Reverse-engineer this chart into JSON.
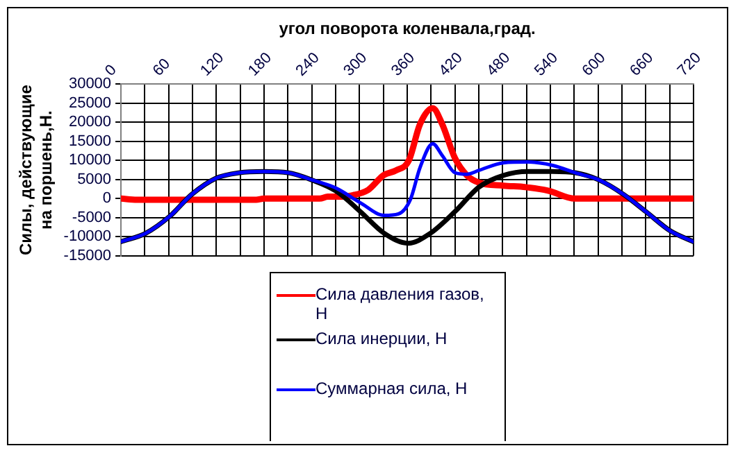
{
  "chart_data": {
    "type": "line",
    "xlabel": "угол поворота коленвала,град.",
    "ylabel": "Силы, действующие на поршень,Н.",
    "xlim": [
      0,
      720
    ],
    "xticks": [
      0,
      {
        "value": 30,
        "label": null
      },
      60,
      {
        "value": 90,
        "label": null
      },
      120,
      {
        "value": 150,
        "label": null
      },
      180,
      {
        "value": 210,
        "label": null
      },
      240,
      {
        "value": 270,
        "label": null
      },
      300,
      {
        "value": 330,
        "label": null
      },
      360,
      {
        "value": 390,
        "label": null
      },
      420,
      {
        "value": 450,
        "label": null
      },
      480,
      {
        "value": 510,
        "label": null
      },
      540,
      {
        "value": 570,
        "label": null
      },
      600,
      {
        "value": 630,
        "label": null
      },
      660,
      {
        "value": 690,
        "label": null
      },
      720
    ],
    "ylim": [
      -15000,
      30000
    ],
    "yticks": [
      -15000,
      -10000,
      -5000,
      0,
      5000,
      10000,
      15000,
      20000,
      25000,
      30000
    ],
    "grid": true,
    "legend": "bottom",
    "marker": "none",
    "line_style": "solid",
    "series": [
      {
        "name": "Сила давления газов, Н",
        "color": "#ff0000",
        "x": [
          0,
          20,
          170,
          180,
          250,
          260,
          280,
          287,
          311,
          330,
          346,
          362,
          376,
          392,
          404,
          420,
          435,
          450,
          481,
          509,
          537,
          571,
          720
        ],
        "values": [
          0,
          -300,
          -300,
          0,
          0,
          500,
          500,
          700,
          2300,
          6100,
          7400,
          10000,
          19500,
          23700,
          19500,
          10600,
          6100,
          4200,
          3400,
          3000,
          2100,
          0,
          0
        ]
      },
      {
        "name": "Сила инерции, Н",
        "color": "#000000",
        "x": [
          0,
          31,
          61,
          89,
          119,
          149,
          180,
          210,
          240,
          271,
          301,
          331,
          361,
          389,
          420,
          450,
          481,
          512,
          543,
          571,
          601,
          632,
          660,
          691,
          720
        ],
        "values": [
          -11300,
          -9100,
          -4700,
          1100,
          5300,
          6800,
          7100,
          6800,
          4900,
          1900,
          -3400,
          -9100,
          -11700,
          -9100,
          -3400,
          3000,
          6100,
          7100,
          7100,
          6800,
          4900,
          1100,
          -3400,
          -8500,
          -11300
        ]
      },
      {
        "name": "Суммарная сила, Н",
        "color": "#0000ff",
        "x": [
          0,
          31,
          61,
          89,
          119,
          149,
          180,
          210,
          240,
          271,
          301,
          331,
          349,
          364,
          376,
          392,
          404,
          420,
          435,
          450,
          481,
          512,
          543,
          571,
          601,
          632,
          660,
          691,
          720
        ],
        "values": [
          -11300,
          -9100,
          -4700,
          1100,
          5300,
          6800,
          7100,
          6800,
          4900,
          2700,
          -1100,
          -4400,
          -4000,
          -200,
          8100,
          14400,
          11300,
          6800,
          6400,
          7400,
          9400,
          9600,
          8700,
          6800,
          4900,
          1100,
          -3400,
          -8500,
          -11300
        ]
      }
    ]
  }
}
